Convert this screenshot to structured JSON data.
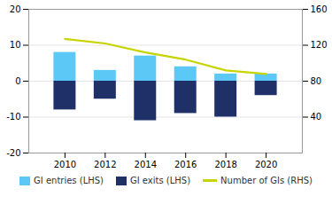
{
  "chart_data": {
    "type": "bar",
    "x": [
      2010,
      2012,
      2014,
      2016,
      2018,
      2020
    ],
    "series": [
      {
        "name": "GI entries (LHS)",
        "color": "#5bc8f5",
        "values": [
          8,
          3,
          7,
          4,
          2,
          2
        ]
      },
      {
        "name": "GI exits (LHS)",
        "color": "#1f3068",
        "values": [
          -8,
          -5,
          -11,
          -9,
          -10,
          -4
        ]
      },
      {
        "name": "Number of GIs (RHS)",
        "color": "#c8d400",
        "values": [
          127,
          122,
          112,
          104,
          92,
          88
        ],
        "type": "line",
        "axis": "y2"
      }
    ],
    "xlim": [
      2008.2,
      2021.8
    ],
    "xticks": [
      2010,
      2012,
      2014,
      2016,
      2018,
      2020
    ],
    "ylim": [
      -20,
      20
    ],
    "yticks": [
      -20,
      -10,
      0,
      10,
      20
    ],
    "y2lim": [
      0,
      160
    ],
    "y2ticks": [
      40,
      80,
      120,
      160
    ],
    "grid": true,
    "legend": "bottom"
  }
}
